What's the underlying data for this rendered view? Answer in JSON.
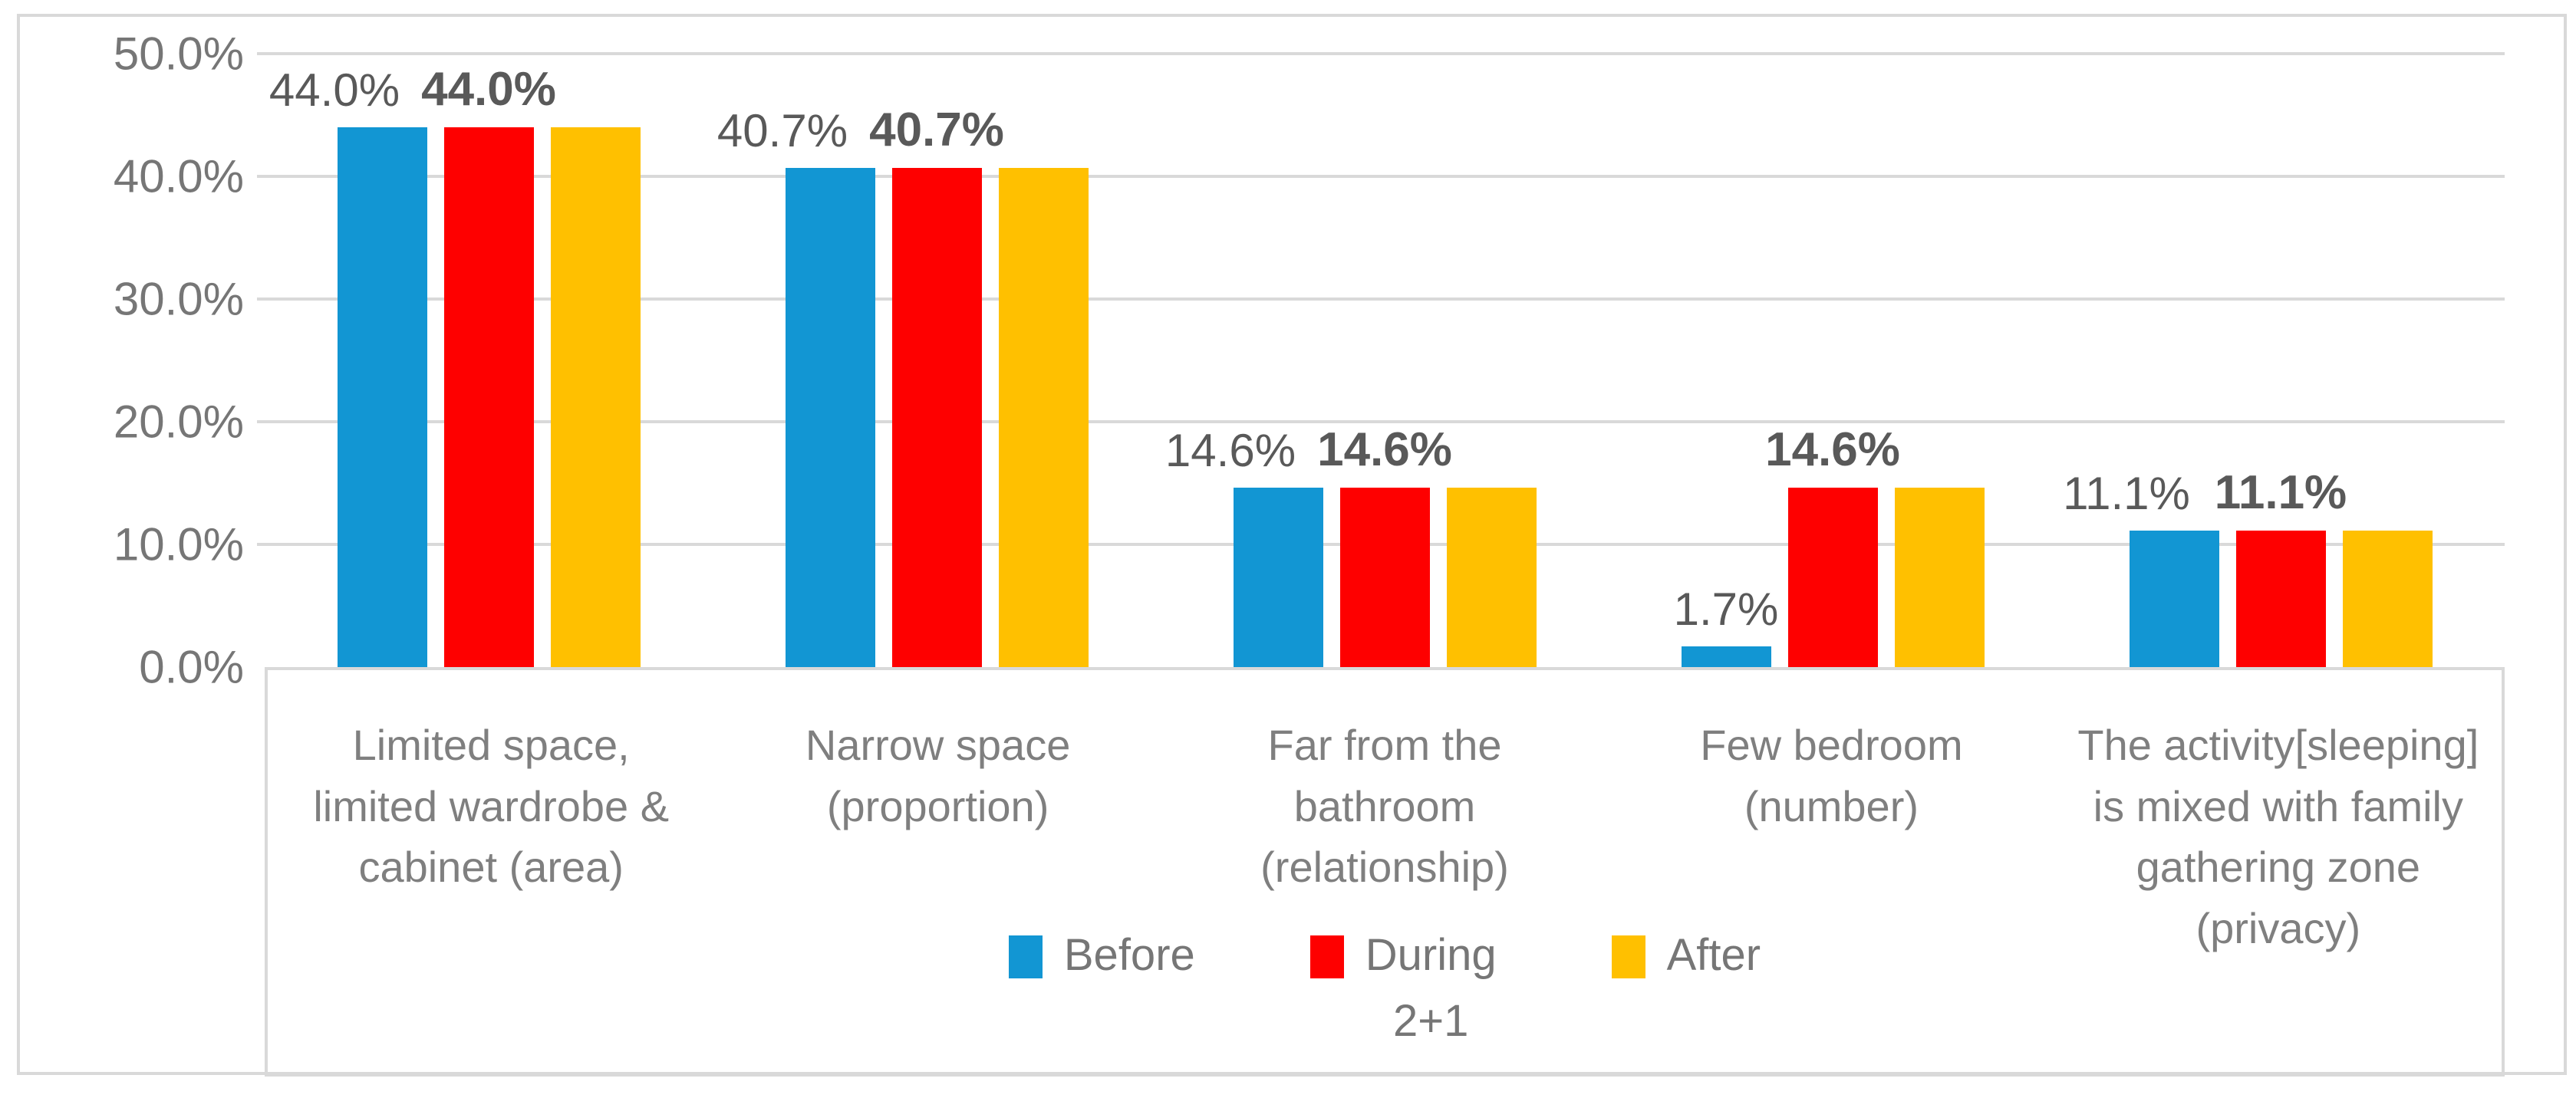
{
  "chart_data": {
    "type": "bar",
    "title": "",
    "xlabel": "",
    "ylabel": "",
    "categories": [
      "Limited space,\nlimited wardrobe &\ncabinet (area)",
      "Narrow space\n(proportion)",
      "Far from the\nbathroom\n(relationship)",
      "Few bedroom\n(number)",
      "The activity[sleeping]\nis mixed with family\ngathering zone\n(privacy)"
    ],
    "series": [
      {
        "name": "Before",
        "color": "#1296d3",
        "values": [
          44.0,
          40.7,
          14.6,
          1.7,
          11.1
        ],
        "data_labels": [
          "44.0%",
          "40.7%",
          "14.6%",
          "1.7%",
          "11.1%"
        ],
        "labels_bold": false
      },
      {
        "name": "During 2+1",
        "color": "#fe0000",
        "values": [
          44.0,
          40.7,
          14.6,
          14.6,
          11.1
        ],
        "data_labels": [
          "44.0%",
          "40.7%",
          "14.6%",
          "14.6%",
          "11.1%"
        ],
        "labels_bold": true
      },
      {
        "name": "After",
        "color": "#ffc000",
        "values": [
          44.0,
          40.7,
          14.6,
          14.6,
          11.1
        ],
        "data_labels": null,
        "labels_bold": false
      }
    ],
    "y_axis": {
      "min": 0,
      "max": 50,
      "step": 10,
      "tick_values": [
        0,
        10,
        20,
        30,
        40,
        50
      ],
      "tick_labels": [
        "0.0%",
        "10.0%",
        "20.0%",
        "30.0%",
        "40.0%",
        "50.0%"
      ],
      "grid": true
    },
    "legend": {
      "position": "bottom",
      "entries": [
        {
          "label": "Before",
          "sub": null,
          "color": "#1296d3"
        },
        {
          "label": "During",
          "sub": "2+1",
          "color": "#fe0000"
        },
        {
          "label": "After",
          "sub": null,
          "color": "#ffc000"
        }
      ]
    },
    "style_colors": {
      "gridline": "#d9d9d9",
      "border": "#d9d9d9",
      "axis_text": "#767676",
      "data_label_text": "#595959"
    }
  }
}
